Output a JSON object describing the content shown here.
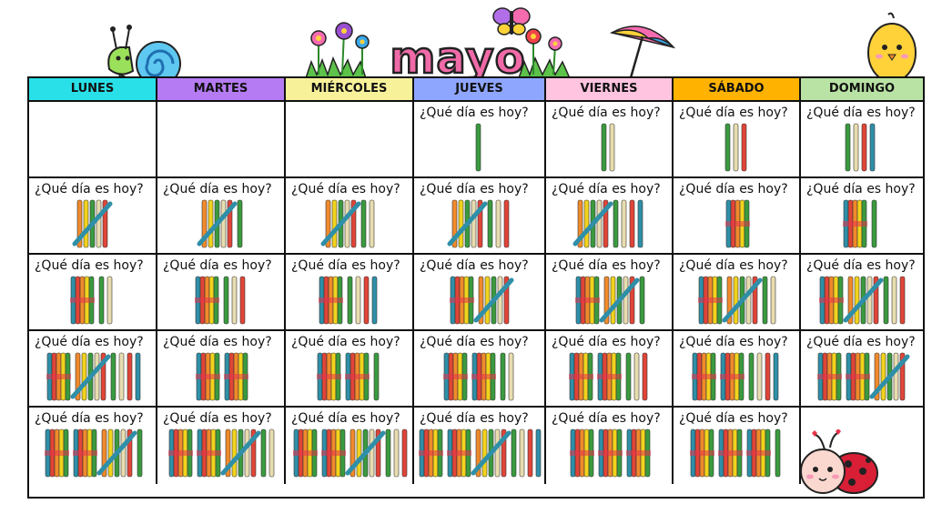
{
  "calendar": {
    "month": "mayo",
    "days": [
      "LUNES",
      "MARTES",
      "MIÉRCOLES",
      "JUEVES",
      "VIERNES",
      "SÁBADO",
      "DOMINGO"
    ],
    "header_colors": [
      "#29e0e8",
      "#b57bf2",
      "#f7f29a",
      "#8fa6ff",
      "#ffc4e0",
      "#ffb300",
      "#b9e3a4"
    ],
    "question": "¿Qué día es hoy?",
    "weeks": [
      [
        {
          "tens": null,
          "ones": null
        },
        {
          "tens": null,
          "ones": null
        },
        {
          "tens": null,
          "ones": null
        },
        {
          "tens": 0,
          "ones": 1
        },
        {
          "tens": 0,
          "ones": 2
        },
        {
          "tens": 0,
          "ones": 3
        },
        {
          "tens": 0,
          "ones": 4
        }
      ],
      [
        {
          "tens": 0,
          "ones": 5
        },
        {
          "tens": 0,
          "ones": 6
        },
        {
          "tens": 0,
          "ones": 7
        },
        {
          "tens": 0,
          "ones": 8
        },
        {
          "tens": 0,
          "ones": 9
        },
        {
          "tens": 1,
          "ones": 0
        },
        {
          "tens": 1,
          "ones": 1
        }
      ],
      [
        {
          "tens": 1,
          "ones": 2
        },
        {
          "tens": 1,
          "ones": 3
        },
        {
          "tens": 1,
          "ones": 4
        },
        {
          "tens": 1,
          "ones": 5
        },
        {
          "tens": 1,
          "ones": 6
        },
        {
          "tens": 1,
          "ones": 7
        },
        {
          "tens": 1,
          "ones": 8
        }
      ],
      [
        {
          "tens": 1,
          "ones": 9
        },
        {
          "tens": 2,
          "ones": 0
        },
        {
          "tens": 2,
          "ones": 1
        },
        {
          "tens": 2,
          "ones": 2
        },
        {
          "tens": 2,
          "ones": 3
        },
        {
          "tens": 2,
          "ones": 4
        },
        {
          "tens": 2,
          "ones": 5
        }
      ],
      [
        {
          "tens": 2,
          "ones": 6
        },
        {
          "tens": 2,
          "ones": 7
        },
        {
          "tens": 2,
          "ones": 8
        },
        {
          "tens": 2,
          "ones": 9
        },
        {
          "tens": 3,
          "ones": 0
        },
        {
          "tens": 3,
          "ones": 1
        },
        {
          "tens": null,
          "ones": null
        }
      ]
    ],
    "stick_colors": [
      "#3a9a3f",
      "#e8ddb0",
      "#e04538",
      "#2f8fa8",
      "#9b5fb5",
      "#f08a2c",
      "#f2d31d"
    ],
    "decorations": [
      "snail",
      "flowers",
      "butterfly",
      "umbrella",
      "chick",
      "ladybug"
    ]
  }
}
